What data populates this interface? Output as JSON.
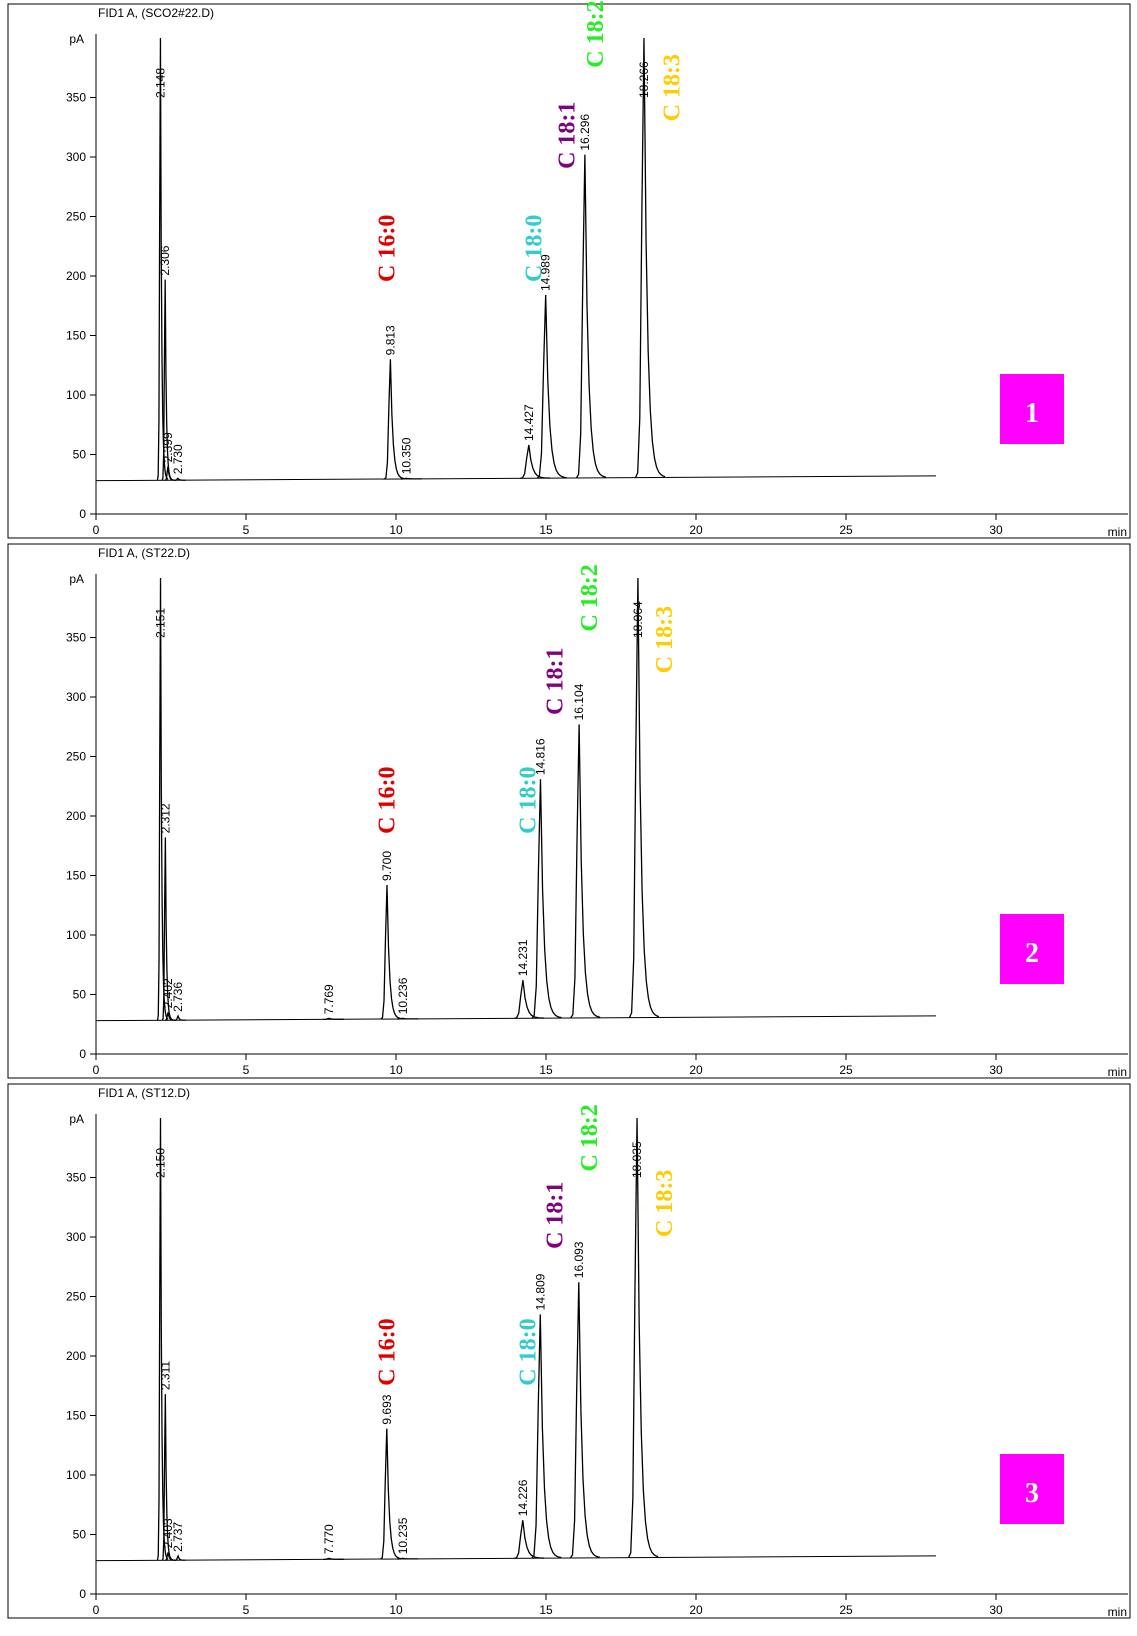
{
  "chart_data": [
    {
      "type": "chromatogram",
      "title": "FID1 A,  (SCO2#22.D)",
      "y_label": "pA",
      "x_label": "min",
      "xlim": [
        0,
        33
      ],
      "xticks": [
        0,
        5,
        10,
        15,
        20,
        25,
        30
      ],
      "ylim": [
        0,
        400
      ],
      "yticks": [
        0,
        50,
        100,
        150,
        200,
        250,
        300,
        350
      ],
      "color": "#000000",
      "panel_label": "1",
      "panel_color": "#ff00ff",
      "baseline": {
        "x": [
          0,
          28
        ],
        "values": [
          28,
          32
        ]
      },
      "peaks": {
        "x": [
          2.148,
          2.306,
          2.399,
          2.73,
          9.813,
          10.35,
          14.427,
          14.989,
          16.296,
          18.266
        ],
        "x_labels": [
          "2.148",
          "2.306",
          "2.399",
          "2.730",
          "9.813",
          "10.350",
          "14.427",
          "14.989",
          "16.296",
          "18.266"
        ],
        "values": [
          400,
          197,
          40,
          30,
          130,
          30,
          58,
          184,
          302,
          400
        ]
      },
      "annotations": [
        {
          "text": "C 16:0",
          "color": "#e00000"
        },
        {
          "text": "C 18:0",
          "color": "#33cccc"
        },
        {
          "text": "C 18:1",
          "color": "#800080"
        },
        {
          "text": "C 18:2",
          "color": "#22ee22"
        },
        {
          "text": "C 18:3",
          "color": "#ffcc00"
        }
      ]
    },
    {
      "type": "chromatogram",
      "title": "FID1 A,  (ST22.D)",
      "y_label": "pA",
      "x_label": "min",
      "xlim": [
        0,
        33
      ],
      "xticks": [
        0,
        5,
        10,
        15,
        20,
        25,
        30
      ],
      "ylim": [
        0,
        400
      ],
      "yticks": [
        0,
        50,
        100,
        150,
        200,
        250,
        300,
        350
      ],
      "color": "#000000",
      "panel_label": "2",
      "panel_color": "#ff00ff",
      "baseline": {
        "x": [
          0,
          28
        ],
        "values": [
          28,
          32
        ]
      },
      "peaks": {
        "x": [
          2.151,
          2.312,
          2.402,
          2.736,
          7.769,
          9.7,
          10.236,
          14.231,
          14.816,
          16.104,
          18.064
        ],
        "x_labels": [
          "2.151",
          "2.312",
          "2.402",
          "2.736",
          "7.769",
          "9.700",
          "10.236",
          "14.231",
          "14.816",
          "16.104",
          "18.064"
        ],
        "values": [
          400,
          182,
          35,
          32,
          30,
          142,
          30,
          62,
          231,
          277,
          400
        ]
      },
      "annotations": [
        {
          "text": "C 16:0",
          "color": "#e00000"
        },
        {
          "text": "C 18:0",
          "color": "#33cccc"
        },
        {
          "text": "C 18:1",
          "color": "#800080"
        },
        {
          "text": "C 18:2",
          "color": "#22ee22"
        },
        {
          "text": "C 18:3",
          "color": "#ffcc00"
        }
      ]
    },
    {
      "type": "chromatogram",
      "title": "FID1 A,  (ST12.D)",
      "y_label": "pA",
      "x_label": "min",
      "xlim": [
        0,
        33
      ],
      "xticks": [
        0,
        5,
        10,
        15,
        20,
        25,
        30
      ],
      "ylim": [
        0,
        400
      ],
      "yticks": [
        0,
        50,
        100,
        150,
        200,
        250,
        300,
        350
      ],
      "color": "#000000",
      "panel_label": "3",
      "panel_color": "#ff00ff",
      "baseline": {
        "x": [
          0,
          28
        ],
        "values": [
          28,
          32
        ]
      },
      "peaks": {
        "x": [
          2.15,
          2.311,
          2.403,
          2.737,
          7.77,
          9.693,
          10.235,
          14.226,
          14.809,
          16.093,
          18.035
        ],
        "x_labels": [
          "2.150",
          "2.311",
          "2.403",
          "2.737",
          "7.770",
          "9.693",
          "10.235",
          "14.226",
          "14.809",
          "16.093",
          "18.035"
        ],
        "values": [
          400,
          168,
          35,
          32,
          30,
          139,
          30,
          62,
          235,
          262,
          400
        ]
      },
      "annotations": [
        {
          "text": "C 16:0",
          "color": "#e00000"
        },
        {
          "text": "C 18:0",
          "color": "#33cccc"
        },
        {
          "text": "C 18:1",
          "color": "#800080"
        },
        {
          "text": "C 18:2",
          "color": "#22ee22"
        },
        {
          "text": "C 18:3",
          "color": "#ffcc00"
        }
      ]
    }
  ]
}
